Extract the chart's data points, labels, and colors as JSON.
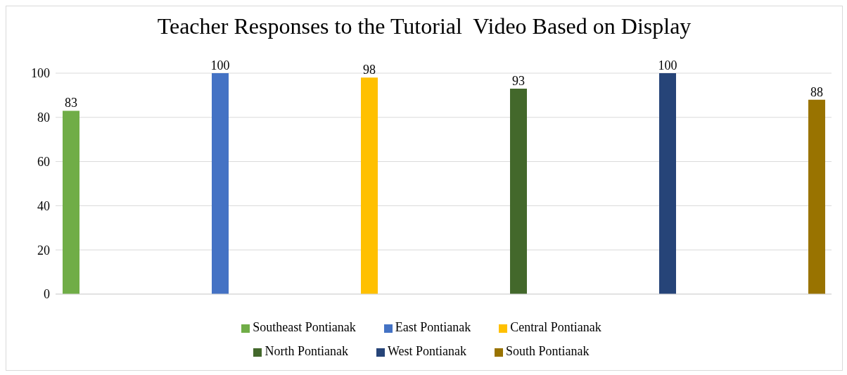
{
  "chart_data": {
    "type": "bar",
    "title": "Teacher Responses to the Tutorial  Video Based on Display",
    "categories": [
      null
    ],
    "series": [
      {
        "name": "Southeast Pontianak",
        "color": "#70ad47",
        "values": [
          83
        ]
      },
      {
        "name": "East Pontianak",
        "color": "#4472c4",
        "values": [
          100
        ]
      },
      {
        "name": "Central Pontianak",
        "color": "#ffc000",
        "values": [
          98
        ]
      },
      {
        "name": "North Pontianak",
        "color": "#43682b",
        "values": [
          93
        ]
      },
      {
        "name": "West Pontianak",
        "color": "#264478",
        "values": [
          100
        ]
      },
      {
        "name": "South Pontianak",
        "color": "#997300",
        "values": [
          88
        ]
      }
    ],
    "ylim": [
      0,
      100
    ],
    "yticks": [
      0,
      20,
      40,
      60,
      80,
      100
    ],
    "grid": "y",
    "legend": "bottom",
    "data_labels": true
  }
}
